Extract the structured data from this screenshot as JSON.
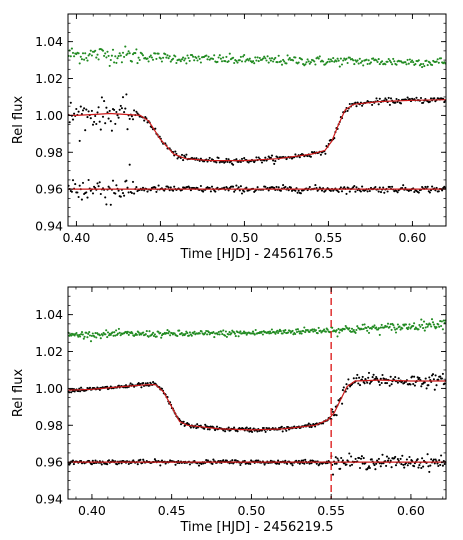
{
  "figure": {
    "panels": 2
  },
  "chart_data": [
    {
      "type": "scatter",
      "xlabel": "Time [HJD] - 2456176.5",
      "ylabel": "Rel flux",
      "xlim": [
        0.395,
        0.62
      ],
      "ylim": [
        0.94,
        1.055
      ],
      "xticks": [
        0.4,
        0.45,
        0.5,
        0.55,
        0.6
      ],
      "xtick_labels": [
        "0.40",
        "0.45",
        "0.50",
        "0.55",
        "0.60"
      ],
      "yticks": [
        0.94,
        0.96,
        0.98,
        1.0,
        1.02,
        1.04
      ],
      "ytick_labels": [
        "0.94",
        "0.96",
        "0.98",
        "1.00",
        "1.02",
        "1.04"
      ],
      "grid": false,
      "vline": null,
      "series": [
        {
          "role": "comparison-star",
          "color": "#228b22",
          "kind": "points",
          "x": [
            0.4,
            0.42,
            0.44,
            0.46,
            0.5,
            0.55,
            0.6,
            0.62
          ],
          "y": [
            1.033,
            1.033,
            1.032,
            1.031,
            1.03,
            1.0295,
            1.029,
            1.029
          ],
          "scatter": 0.0013,
          "scatter_x": [
            0.395,
            0.44
          ],
          "scatter_factor": 1.8
        },
        {
          "role": "target",
          "color": "#000000",
          "kind": "points",
          "x": [
            0.395,
            0.4,
            0.41,
            0.42,
            0.43,
            0.438,
            0.443,
            0.45,
            0.458,
            0.465,
            0.48,
            0.5,
            0.52,
            0.54,
            0.548,
            0.552,
            0.556,
            0.56,
            0.565,
            0.58,
            0.6,
            0.62
          ],
          "y": [
            1.0,
            1.0,
            1.0005,
            1.001,
            1.0005,
            1.0,
            0.997,
            0.987,
            0.979,
            0.9765,
            0.9755,
            0.9755,
            0.9765,
            0.979,
            0.981,
            0.986,
            0.995,
            1.003,
            1.006,
            1.0075,
            1.0082,
            1.0085
          ],
          "scatter": 0.0008,
          "scatter_x": [
            0.395,
            0.435
          ],
          "scatter_factor": 5.0
        },
        {
          "role": "residuals",
          "color": "#000000",
          "kind": "points",
          "x": [
            0.395,
            0.62
          ],
          "y": [
            0.96,
            0.96
          ],
          "scatter": 0.0009,
          "scatter_x": [
            0.395,
            0.435
          ],
          "scatter_factor": 4.5
        },
        {
          "role": "transit-model",
          "color": "#cc1a1a",
          "kind": "line",
          "x": [
            0.395,
            0.4,
            0.41,
            0.42,
            0.43,
            0.438,
            0.443,
            0.45,
            0.458,
            0.465,
            0.48,
            0.5,
            0.52,
            0.54,
            0.548,
            0.552,
            0.556,
            0.56,
            0.565,
            0.58,
            0.6,
            0.62
          ],
          "y": [
            1.0,
            1.0,
            1.0005,
            1.001,
            1.0005,
            1.0,
            0.997,
            0.987,
            0.979,
            0.9765,
            0.9755,
            0.9755,
            0.9765,
            0.979,
            0.981,
            0.986,
            0.995,
            1.003,
            1.006,
            1.0075,
            1.0082,
            1.0085
          ]
        },
        {
          "role": "zero-residual-line",
          "color": "#cc1a1a",
          "kind": "line",
          "x": [
            0.395,
            0.62
          ],
          "y": [
            0.96,
            0.96
          ]
        }
      ]
    },
    {
      "type": "scatter",
      "xlabel": "Time [HJD] - 2456219.5",
      "ylabel": "Rel flux",
      "xlim": [
        0.385,
        0.622
      ],
      "ylim": [
        0.94,
        1.055
      ],
      "xticks": [
        0.4,
        0.45,
        0.5,
        0.55,
        0.6
      ],
      "xtick_labels": [
        "0.40",
        "0.45",
        "0.50",
        "0.55",
        "0.60"
      ],
      "yticks": [
        0.94,
        0.96,
        0.98,
        1.0,
        1.02,
        1.04
      ],
      "ytick_labels": [
        "0.94",
        "0.96",
        "0.98",
        "1.00",
        "1.02",
        "1.04"
      ],
      "grid": false,
      "vline": {
        "x": 0.55,
        "color": "#dd2222",
        "style": "dashed"
      },
      "series": [
        {
          "role": "comparison-star",
          "color": "#228b22",
          "kind": "points",
          "x": [
            0.385,
            0.42,
            0.46,
            0.5,
            0.53,
            0.56,
            0.59,
            0.622
          ],
          "y": [
            1.029,
            1.0295,
            1.0295,
            1.03,
            1.031,
            1.032,
            1.033,
            1.0355
          ],
          "scatter": 0.0009,
          "scatter_x": [
            0.55,
            0.622
          ],
          "scatter_factor": 1.4
        },
        {
          "role": "target",
          "color": "#000000",
          "kind": "points",
          "x": [
            0.385,
            0.4,
            0.42,
            0.435,
            0.44,
            0.445,
            0.45,
            0.455,
            0.46,
            0.48,
            0.5,
            0.52,
            0.54,
            0.548,
            0.552,
            0.556,
            0.56,
            0.565,
            0.58,
            0.6,
            0.622
          ],
          "y": [
            0.999,
            0.9995,
            1.001,
            1.002,
            1.002,
            0.998,
            0.99,
            0.982,
            0.98,
            0.978,
            0.9775,
            0.978,
            0.98,
            0.983,
            0.987,
            0.994,
            1.001,
            1.004,
            1.0045,
            1.004,
            1.004
          ],
          "scatter": 0.0006,
          "scatter_x": [
            0.55,
            0.622
          ],
          "scatter_factor": 3.0
        },
        {
          "role": "residuals",
          "color": "#000000",
          "kind": "points",
          "x": [
            0.385,
            0.622
          ],
          "y": [
            0.96,
            0.96
          ],
          "scatter": 0.0006,
          "scatter_x": [
            0.55,
            0.622
          ],
          "scatter_factor": 3.0
        },
        {
          "role": "transit-model",
          "color": "#cc1a1a",
          "kind": "line",
          "x": [
            0.385,
            0.4,
            0.42,
            0.435,
            0.44,
            0.445,
            0.45,
            0.455,
            0.46,
            0.48,
            0.5,
            0.52,
            0.54,
            0.548,
            0.552,
            0.556,
            0.56,
            0.565,
            0.58,
            0.6,
            0.622
          ],
          "y": [
            0.999,
            0.9995,
            1.001,
            1.002,
            1.002,
            0.998,
            0.99,
            0.982,
            0.98,
            0.978,
            0.9775,
            0.978,
            0.98,
            0.983,
            0.987,
            0.994,
            1.001,
            1.004,
            1.0045,
            1.004,
            1.004
          ]
        },
        {
          "role": "zero-residual-line",
          "color": "#cc1a1a",
          "kind": "line",
          "x": [
            0.385,
            0.622
          ],
          "y": [
            0.96,
            0.96
          ]
        }
      ]
    }
  ]
}
